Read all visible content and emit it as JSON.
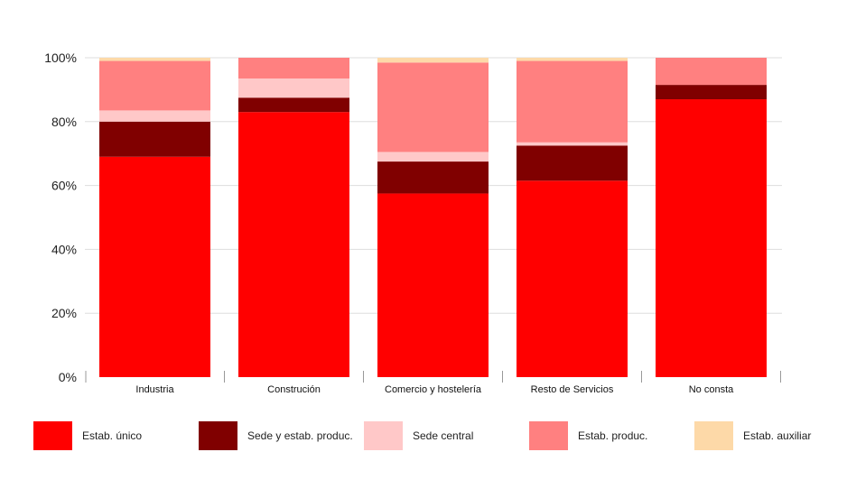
{
  "chart_data": {
    "type": "bar",
    "stacked": true,
    "orientation": "vertical",
    "categories": [
      "Industria",
      "Construción",
      "Comercio y hostelería",
      "Resto de Servicios",
      "No consta"
    ],
    "series": [
      {
        "name": "Estab. único",
        "color": "#ff0000",
        "values": [
          69.0,
          83.0,
          57.5,
          61.5,
          87.0
        ]
      },
      {
        "name": "Sede y estab. produc.",
        "color": "#800000",
        "values": [
          11.0,
          4.5,
          10.0,
          11.0,
          4.5
        ]
      },
      {
        "name": "Sede central",
        "color": "#ffc8c8",
        "values": [
          3.5,
          6.0,
          3.0,
          1.0,
          0.0
        ]
      },
      {
        "name": "Estab. produc.",
        "color": "#ff8080",
        "values": [
          15.5,
          6.5,
          28.0,
          25.5,
          8.5
        ]
      },
      {
        "name": "Estab. auxiliar",
        "color": "#fdd9a8",
        "values": [
          1.0,
          0.0,
          1.5,
          1.0,
          0.0
        ]
      }
    ],
    "ylim": [
      0,
      100
    ],
    "yticks": [
      "0%",
      "20%",
      "40%",
      "60%",
      "80%",
      "100%"
    ],
    "grid": true,
    "legend_position": "bottom"
  }
}
